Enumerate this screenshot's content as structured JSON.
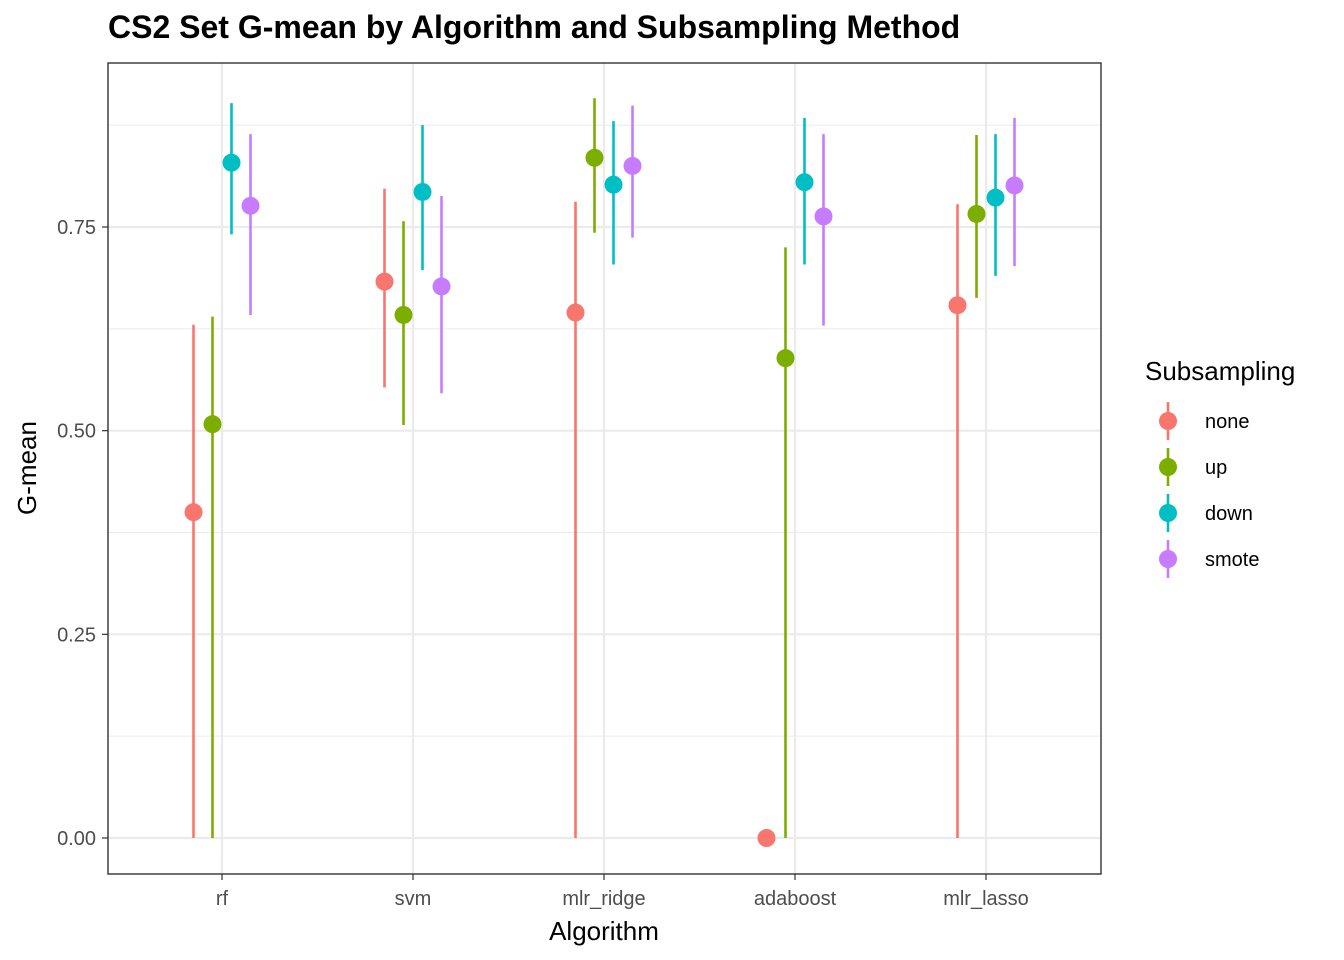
{
  "chart_data": {
    "type": "scatter",
    "title": "CS2 Set G-mean by Algorithm and Subsampling Method",
    "xlabel": "Algorithm",
    "ylabel": "G-mean",
    "categories": [
      "rf",
      "svm",
      "mlr_ridge",
      "adaboost",
      "mlr_lasso"
    ],
    "ylim": [
      -0.04,
      0.95
    ],
    "yticks": [
      0.0,
      0.25,
      0.5,
      0.75
    ],
    "ytick_labels": [
      "0.00",
      "0.25",
      "0.50",
      "0.75"
    ],
    "grid": true,
    "legend": {
      "title": "Subsampling",
      "position": "right"
    },
    "series": [
      {
        "name": "none",
        "color": "#F8766D",
        "values": [
          0.4,
          0.683,
          0.645,
          0.0,
          0.654
        ],
        "lower": [
          0.0,
          0.553,
          0.0,
          0.0,
          0.0
        ],
        "upper": [
          0.63,
          0.797,
          0.781,
          0.0,
          0.778
        ]
      },
      {
        "name": "up",
        "color": "#7CAE00",
        "values": [
          0.508,
          0.642,
          0.835,
          0.589,
          0.766
        ],
        "lower": [
          0.0,
          0.507,
          0.743,
          0.0,
          0.663
        ],
        "upper": [
          0.64,
          0.757,
          0.908,
          0.725,
          0.863
        ]
      },
      {
        "name": "down",
        "color": "#00BFC4",
        "values": [
          0.829,
          0.793,
          0.802,
          0.805,
          0.786
        ],
        "lower": [
          0.741,
          0.697,
          0.704,
          0.704,
          0.69
        ],
        "upper": [
          0.902,
          0.875,
          0.88,
          0.884,
          0.864
        ]
      },
      {
        "name": "smote",
        "color": "#C77CFF",
        "values": [
          0.776,
          0.677,
          0.825,
          0.763,
          0.801
        ],
        "lower": [
          0.642,
          0.546,
          0.737,
          0.629,
          0.702
        ],
        "upper": [
          0.864,
          0.788,
          0.899,
          0.864,
          0.884
        ]
      }
    ]
  }
}
